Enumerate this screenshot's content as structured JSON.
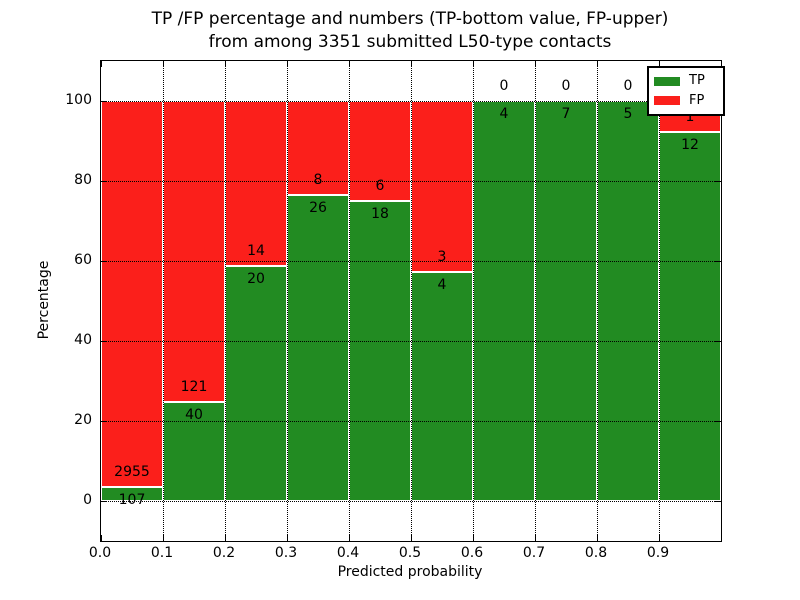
{
  "figure": {
    "title_line1": "TP /FP percentage and numbers (TP-bottom value, FP-upper)",
    "title_line2": "from among 3351 submitted L50-type contacts"
  },
  "axes": {
    "xlabel": "Predicted probability",
    "ylabel": "Percentage",
    "x_tick_labels": [
      "0.0",
      "0.1",
      "0.2",
      "0.3",
      "0.4",
      "0.5",
      "0.6",
      "0.7",
      "0.8",
      "0.9"
    ],
    "y_tick_labels": [
      "0",
      "20",
      "40",
      "60",
      "80",
      "100"
    ],
    "y_tick_values": [
      0,
      20,
      40,
      60,
      80,
      100
    ]
  },
  "legend": {
    "entries": [
      {
        "label": "TP",
        "color": "#228b22"
      },
      {
        "label": "FP",
        "color": "#fb1f1b"
      }
    ]
  },
  "chart_data": {
    "type": "bar",
    "stacked": true,
    "units": "percent of bin total",
    "title": "TP /FP percentage and numbers (TP-bottom value, FP-upper) from among 3351 submitted L50-type contacts",
    "xlabel": "Predicted probability",
    "ylabel": "Percentage",
    "xlim": [
      0.0,
      1.0
    ],
    "ylim": [
      -10,
      110
    ],
    "grid": "dotted black, horizontal every 20%, vertical every 0.1",
    "legend_position": "upper right",
    "bin_width": 0.1,
    "bin_starts": [
      0.0,
      0.1,
      0.2,
      0.3,
      0.4,
      0.5,
      0.6,
      0.7,
      0.8,
      0.9
    ],
    "series": [
      {
        "name": "TP",
        "color": "#228b22",
        "counts": [
          107,
          40,
          20,
          26,
          18,
          4,
          4,
          7,
          5,
          12
        ],
        "percent": [
          3.49,
          24.84,
          58.82,
          76.47,
          75.0,
          57.14,
          100.0,
          100.0,
          100.0,
          92.31
        ]
      },
      {
        "name": "FP",
        "color": "#fb1f1b",
        "counts": [
          2955,
          121,
          14,
          8,
          6,
          3,
          0,
          0,
          0,
          1
        ],
        "percent": [
          96.51,
          75.16,
          41.18,
          23.53,
          25.0,
          42.86,
          0.0,
          0.0,
          0.0,
          7.69
        ]
      }
    ],
    "total_contacts": 3351
  }
}
